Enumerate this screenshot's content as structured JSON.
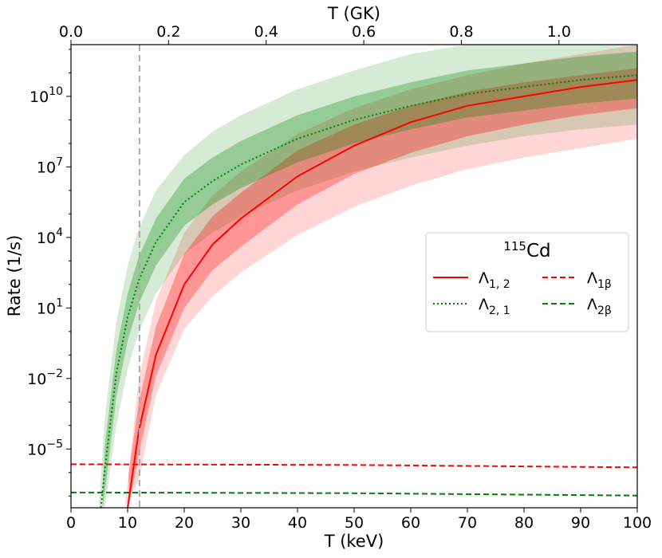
{
  "chart_data": {
    "type": "line",
    "title": "",
    "xlabel": "T (keV)",
    "ylabel": "Rate (1/s)",
    "top_xlabel": "T (GK)",
    "xlim": [
      0,
      100
    ],
    "ylog": true,
    "ylim_log10": [
      -7.5,
      12.2
    ],
    "x_ticks": [
      0,
      10,
      20,
      30,
      40,
      50,
      60,
      70,
      80,
      90,
      100
    ],
    "x_tick_labels": [
      "0",
      "10",
      "20",
      "30",
      "40",
      "50",
      "60",
      "70",
      "80",
      "90",
      "100"
    ],
    "y_ticks_log10": [
      -5,
      -2,
      1,
      4,
      7,
      10
    ],
    "y_tick_labels": [
      {
        "base": "10",
        "exp": "−5"
      },
      {
        "base": "10",
        "exp": "−2"
      },
      {
        "base": "10",
        "exp": "1"
      },
      {
        "base": "10",
        "exp": "4"
      },
      {
        "base": "10",
        "exp": "7"
      },
      {
        "base": "10",
        "exp": "10"
      }
    ],
    "top_ticks_GK": [
      0.0,
      0.2,
      0.4,
      0.6,
      0.8,
      1.0
    ],
    "top_tick_labels": [
      "0.0",
      "0.2",
      "0.4",
      "0.6",
      "0.8",
      "1.0"
    ],
    "keV_per_GK": 86.17,
    "vline_keV": 12.1,
    "grid": false,
    "legend": {
      "title_sup": "115",
      "title_main": "Cd",
      "placement": "center-right",
      "entries": [
        "Λ1,2",
        "Λ1β",
        "Λ2,1",
        "Λ2β"
      ]
    },
    "series": [
      {
        "key": "l12",
        "label_main": "Λ",
        "label_sub": "1, 2",
        "color": "#ff0000",
        "style": "solid",
        "x": [
          10,
          12,
          15,
          20,
          25,
          30,
          40,
          50,
          60,
          70,
          80,
          90,
          100
        ],
        "log10_y": [
          -7.5,
          -4.2,
          -1.0,
          2.0,
          3.7,
          4.8,
          6.6,
          7.9,
          8.9,
          9.6,
          10.0,
          10.4,
          10.7
        ],
        "band_inner": [
          {
            "x": 10.2,
            "log10_lo": -7.5,
            "log10_hi": -6.0
          },
          {
            "x": 12,
            "log10_lo": -5.2,
            "log10_hi": -3.0
          },
          {
            "x": 15,
            "log10_lo": -1.9,
            "log10_hi": 0.2
          },
          {
            "x": 20,
            "log10_lo": 1.0,
            "log10_hi": 3.3
          },
          {
            "x": 25,
            "log10_lo": 2.6,
            "log10_hi": 4.9
          },
          {
            "x": 30,
            "log10_lo": 3.6,
            "log10_hi": 5.9
          },
          {
            "x": 40,
            "log10_lo": 5.4,
            "log10_hi": 7.7
          },
          {
            "x": 50,
            "log10_lo": 6.7,
            "log10_hi": 8.8
          },
          {
            "x": 60,
            "log10_lo": 7.6,
            "log10_hi": 9.6
          },
          {
            "x": 70,
            "log10_lo": 8.3,
            "log10_hi": 10.2
          },
          {
            "x": 80,
            "log10_lo": 8.8,
            "log10_hi": 10.6
          },
          {
            "x": 90,
            "log10_lo": 9.2,
            "log10_hi": 10.9
          },
          {
            "x": 100,
            "log10_lo": 9.5,
            "log10_hi": 11.2
          }
        ],
        "band_outer": [
          {
            "x": 9.5,
            "log10_lo": -7.5,
            "log10_hi": -7.5
          },
          {
            "x": 12,
            "log10_lo": -6.3,
            "log10_hi": -2.0
          },
          {
            "x": 15,
            "log10_lo": -2.7,
            "log10_hi": 1.3
          },
          {
            "x": 20,
            "log10_lo": 0.1,
            "log10_hi": 4.2
          },
          {
            "x": 25,
            "log10_lo": 1.5,
            "log10_hi": 5.8
          },
          {
            "x": 30,
            "log10_lo": 2.5,
            "log10_hi": 6.8
          },
          {
            "x": 40,
            "log10_lo": 4.1,
            "log10_hi": 8.4
          },
          {
            "x": 50,
            "log10_lo": 5.3,
            "log10_hi": 9.5
          },
          {
            "x": 60,
            "log10_lo": 6.2,
            "log10_hi": 10.3
          },
          {
            "x": 70,
            "log10_lo": 6.9,
            "log10_hi": 10.9
          },
          {
            "x": 80,
            "log10_lo": 7.4,
            "log10_hi": 11.4
          },
          {
            "x": 90,
            "log10_lo": 7.8,
            "log10_hi": 11.8
          },
          {
            "x": 100,
            "log10_lo": 8.2,
            "log10_hi": 12.2
          }
        ]
      },
      {
        "key": "l21",
        "label_main": "Λ",
        "label_sub": "2, 1",
        "color": "#008000",
        "style": "dotted",
        "x": [
          5.3,
          6,
          8,
          10,
          12,
          15,
          20,
          25,
          30,
          40,
          50,
          60,
          70,
          80,
          90,
          100
        ],
        "log10_y": [
          -7.5,
          -5.8,
          -1.8,
          0.6,
          2.2,
          3.8,
          5.5,
          6.4,
          7.1,
          8.2,
          9.0,
          9.6,
          10.1,
          10.4,
          10.7,
          10.9
        ],
        "band_inner": [
          {
            "x": 5.6,
            "log10_lo": -7.5,
            "log10_hi": -6.5
          },
          {
            "x": 6,
            "log10_lo": -6.8,
            "log10_hi": -4.8
          },
          {
            "x": 8,
            "log10_lo": -2.8,
            "log10_hi": -0.8
          },
          {
            "x": 10,
            "log10_lo": -0.4,
            "log10_hi": 1.6
          },
          {
            "x": 12,
            "log10_lo": 1.2,
            "log10_hi": 3.2
          },
          {
            "x": 15,
            "log10_lo": 2.8,
            "log10_hi": 4.8
          },
          {
            "x": 20,
            "log10_lo": 4.5,
            "log10_hi": 6.5
          },
          {
            "x": 25,
            "log10_lo": 5.4,
            "log10_hi": 7.4
          },
          {
            "x": 30,
            "log10_lo": 6.1,
            "log10_hi": 8.1
          },
          {
            "x": 40,
            "log10_lo": 7.2,
            "log10_hi": 9.2
          },
          {
            "x": 50,
            "log10_lo": 8.0,
            "log10_hi": 10.0
          },
          {
            "x": 60,
            "log10_lo": 8.6,
            "log10_hi": 10.6
          },
          {
            "x": 70,
            "log10_lo": 9.1,
            "log10_hi": 11.1
          },
          {
            "x": 80,
            "log10_lo": 9.4,
            "log10_hi": 11.4
          },
          {
            "x": 90,
            "log10_lo": 9.7,
            "log10_hi": 11.7
          },
          {
            "x": 100,
            "log10_lo": 9.9,
            "log10_hi": 11.9
          }
        ],
        "band_outer": [
          {
            "x": 4.9,
            "log10_lo": -7.5,
            "log10_hi": -7.5
          },
          {
            "x": 6,
            "log10_lo": -7.5,
            "log10_hi": -3.6
          },
          {
            "x": 8,
            "log10_lo": -4.0,
            "log10_hi": 0.4
          },
          {
            "x": 10,
            "log10_lo": -1.6,
            "log10_hi": 2.8
          },
          {
            "x": 12,
            "log10_lo": 0.0,
            "log10_hi": 4.4
          },
          {
            "x": 15,
            "log10_lo": 1.6,
            "log10_hi": 6.0
          },
          {
            "x": 20,
            "log10_lo": 3.3,
            "log10_hi": 7.5
          },
          {
            "x": 25,
            "log10_lo": 4.2,
            "log10_hi": 8.5
          },
          {
            "x": 30,
            "log10_lo": 4.9,
            "log10_hi": 9.2
          },
          {
            "x": 40,
            "log10_lo": 6.0,
            "log10_hi": 10.3
          },
          {
            "x": 50,
            "log10_lo": 6.8,
            "log10_hi": 11.1
          },
          {
            "x": 60,
            "log10_lo": 7.4,
            "log10_hi": 11.8
          },
          {
            "x": 70,
            "log10_lo": 7.9,
            "log10_hi": 12.2
          },
          {
            "x": 80,
            "log10_lo": 8.3,
            "log10_hi": 12.2
          },
          {
            "x": 90,
            "log10_lo": 8.6,
            "log10_hi": 12.2
          },
          {
            "x": 100,
            "log10_lo": 8.8,
            "log10_hi": 12.2
          }
        ]
      },
      {
        "key": "l1b",
        "label_main": "Λ",
        "label_sub": "1β",
        "color": "#ff0000",
        "style": "dashed",
        "x": [
          0,
          50,
          100
        ],
        "log10_y": [
          -5.65,
          -5.68,
          -5.78
        ]
      },
      {
        "key": "l2b",
        "label_main": "Λ",
        "label_sub": "2β",
        "color": "#008000",
        "style": "dashed",
        "x": [
          0,
          50,
          100
        ],
        "log10_y": [
          -6.85,
          -6.88,
          -6.98
        ]
      }
    ]
  }
}
